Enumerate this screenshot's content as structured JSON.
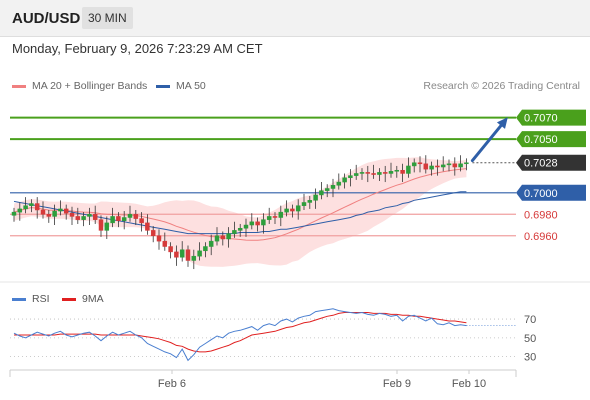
{
  "header": {
    "symbol": "AUD/USD",
    "timeframe": "30 MIN"
  },
  "datetime": "Monday, February 9, 2026 7:23:29 AM CET",
  "legend": {
    "bb_label": "MA 20 + Bollinger Bands",
    "ma50_label": "MA 50",
    "credit": "Research © 2026 Trading Central"
  },
  "rsi_legend": {
    "rsi_label": "RSI",
    "ma9_label": "9MA"
  },
  "colors": {
    "bull": "#2e9e3c",
    "bear": "#d63a3a",
    "ma20": "#f08080",
    "ma50": "#2f5fa8",
    "band_fill": "#fde0e0",
    "resistance": "#4aa01c",
    "pivot": "#2f5fa8",
    "support": "#f0a0a0",
    "last": "#333333",
    "arrow": "#2f5fa8",
    "rsi": "#4a7fd0",
    "rsi_ma": "#e02020"
  },
  "chart_data": {
    "type": "candlestick",
    "y_axis_range": [
      0.693,
      0.7105
    ],
    "x_tick_labels": [
      "Feb 6",
      "Feb 9",
      "Feb 10"
    ],
    "levels": [
      {
        "value": 0.707,
        "label": "0.7070",
        "kind": "resistance"
      },
      {
        "value": 0.705,
        "label": "0.7050",
        "kind": "resistance"
      },
      {
        "value": 0.7028,
        "label": "0.7028",
        "kind": "last"
      },
      {
        "value": 0.7,
        "label": "0.7000",
        "kind": "pivot"
      },
      {
        "value": 0.698,
        "label": "0.6980",
        "kind": "support"
      },
      {
        "value": 0.696,
        "label": "0.6960",
        "kind": "support"
      }
    ],
    "close": [
      0.6982,
      0.6985,
      0.6988,
      0.699,
      0.6984,
      0.698,
      0.6978,
      0.6983,
      0.6985,
      0.6981,
      0.6978,
      0.6975,
      0.6978,
      0.698,
      0.6975,
      0.6965,
      0.6972,
      0.6978,
      0.6974,
      0.6977,
      0.698,
      0.6976,
      0.6972,
      0.6965,
      0.696,
      0.6955,
      0.695,
      0.6945,
      0.694,
      0.6947,
      0.6937,
      0.6941,
      0.6946,
      0.695,
      0.6955,
      0.696,
      0.6957,
      0.6962,
      0.6965,
      0.6967,
      0.697,
      0.6973,
      0.697,
      0.6975,
      0.6978,
      0.6977,
      0.6982,
      0.6985,
      0.6983,
      0.6988,
      0.6991,
      0.6993,
      0.6998,
      0.7002,
      0.7004,
      0.7007,
      0.701,
      0.7014,
      0.7016,
      0.7018,
      0.7019,
      0.7018,
      0.7017,
      0.7019,
      0.7018,
      0.702,
      0.7021,
      0.7018,
      0.7025,
      0.7028,
      0.7027,
      0.7022,
      0.7025,
      0.7024,
      0.7026,
      0.7027,
      0.7024,
      0.7027,
      0.7028
    ],
    "ma50": [
      0.6992,
      0.6991,
      0.699,
      0.6989,
      0.6988,
      0.6987,
      0.6986,
      0.6985,
      0.6984,
      0.6983,
      0.6982,
      0.6981,
      0.698,
      0.6979,
      0.6978,
      0.6977,
      0.6976,
      0.6975,
      0.6974,
      0.6973,
      0.6972,
      0.6971,
      0.697,
      0.6969,
      0.6968,
      0.6967,
      0.6966,
      0.6965,
      0.6964,
      0.6963,
      0.6962,
      0.6962,
      0.6962,
      0.6962,
      0.6962,
      0.6962,
      0.6962,
      0.6962,
      0.6962,
      0.6963,
      0.6963,
      0.6963,
      0.6963,
      0.6964,
      0.6964,
      0.6965,
      0.6966,
      0.6966,
      0.6967,
      0.6968,
      0.6969,
      0.697,
      0.6971,
      0.6972,
      0.6973,
      0.6974,
      0.6975,
      0.6976,
      0.6977,
      0.6979,
      0.698,
      0.6982,
      0.6983,
      0.6984,
      0.6986,
      0.6987,
      0.6988,
      0.699,
      0.6991,
      0.6993,
      0.6994,
      0.6995,
      0.6996,
      0.6997,
      0.6998,
      0.6999,
      0.7,
      0.7001,
      0.7001
    ],
    "rsi_axis_ticks": [
      70,
      50,
      30
    ],
    "rsi_range": [
      20,
      85
    ],
    "rsi": [
      55,
      52,
      50,
      53,
      56,
      54,
      52,
      55,
      57,
      53,
      51,
      53,
      55,
      56,
      52,
      47,
      52,
      56,
      53,
      55,
      57,
      53,
      50,
      44,
      41,
      38,
      35,
      33,
      29,
      38,
      26,
      32,
      40,
      44,
      48,
      52,
      50,
      55,
      57,
      58,
      60,
      62,
      58,
      63,
      65,
      63,
      68,
      70,
      67,
      71,
      73,
      74,
      78,
      79,
      80,
      81,
      79,
      78,
      77,
      76,
      77,
      75,
      74,
      76,
      75,
      73,
      74,
      68,
      73,
      74,
      71,
      68,
      71,
      65,
      64,
      66,
      63,
      64,
      63
    ],
    "rsi_ma": [
      53,
      53,
      53,
      53,
      53,
      53,
      53,
      53,
      54,
      54,
      54,
      54,
      54,
      54,
      54,
      53,
      53,
      53,
      53,
      53,
      53,
      53,
      52,
      51,
      50,
      49,
      47,
      45,
      42,
      41,
      38,
      36,
      35,
      35,
      36,
      38,
      40,
      42,
      45,
      47,
      50,
      53,
      54,
      55,
      56,
      57,
      59,
      61,
      62,
      64,
      66,
      67,
      69,
      71,
      73,
      74,
      76,
      77,
      77,
      77,
      77,
      77,
      76,
      76,
      76,
      75,
      75,
      74,
      74,
      73,
      73,
      72,
      71,
      70,
      69,
      68,
      68,
      67,
      66
    ]
  }
}
